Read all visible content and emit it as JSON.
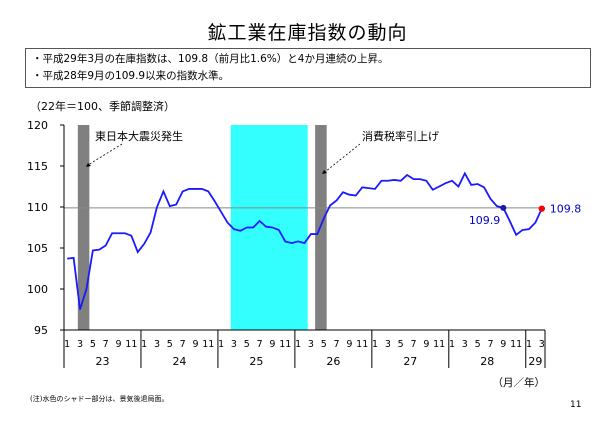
{
  "title": "鉱工業在庫指数の動向",
  "notes": [
    "・平成29年3月の在庫指数は、109.8（前月比1.6%）と4か月連続の上昇。",
    "・平成28年9月の109.9以来の指数水準。"
  ],
  "unit_note": "（22年＝100、季節調整済）",
  "footnote": "(注)水色のシャドー部分は、景気後退局面。",
  "page_number": "11",
  "colors": {
    "line": "#1a1aff",
    "shade_recession": "#33ffff",
    "bar": "#808080",
    "baseline": "#888888",
    "highlight_point": "#ff0000",
    "label": "#0000cc"
  },
  "chart_data": {
    "type": "line",
    "ylim": [
      95,
      120
    ],
    "yticks": [
      95,
      100,
      105,
      110,
      115,
      120
    ],
    "month_ticks": [
      "1",
      "3",
      "5",
      "7",
      "9",
      "11",
      "1",
      "3",
      "5",
      "7",
      "9",
      "11",
      "1",
      "3",
      "5",
      "7",
      "9",
      "11",
      "1",
      "3",
      "5",
      "7",
      "9",
      "11",
      "1",
      "3",
      "5",
      "7",
      "9",
      "11",
      "1",
      "3",
      "5",
      "7",
      "9",
      "11",
      "1",
      "3"
    ],
    "year_labels": [
      "23",
      "24",
      "25",
      "26",
      "27",
      "28",
      "29"
    ],
    "xlabel": "（月／年）",
    "reference_line": 109.9,
    "series": [
      {
        "values": [
          103.7,
          103.8,
          97.5,
          100.0,
          104.7,
          104.8,
          105.3,
          106.8,
          106.8,
          106.8,
          106.5,
          104.5,
          105.5,
          106.9,
          110.0,
          111.9,
          110.1,
          110.3,
          111.9,
          112.2,
          112.2,
          112.2,
          111.9,
          110.7,
          109.4,
          108.1,
          107.3,
          107.1,
          107.5,
          107.5,
          108.3,
          107.6,
          107.5,
          107.2,
          105.8,
          105.6,
          105.8,
          105.6,
          106.7,
          106.7,
          108.6,
          110.2,
          110.8,
          111.8,
          111.5,
          111.4,
          112.4,
          112.3,
          112.2,
          113.2,
          113.2,
          113.3,
          113.2,
          113.9,
          113.4,
          113.4,
          113.2,
          112.1,
          112.5,
          112.9,
          113.2,
          112.5,
          114.1,
          112.7,
          112.8,
          112.4,
          111.0,
          110.1,
          109.9,
          108.3,
          106.6,
          107.2,
          107.3,
          108.1,
          109.8
        ]
      }
    ],
    "shaded_regions": [
      [
        26,
        37
      ]
    ],
    "event_bars": [
      {
        "month_index": 2,
        "label": "東日本大震災発生"
      },
      {
        "month_index": 39,
        "label": "消費税率引上げ"
      }
    ],
    "annotations": [
      {
        "month_index": 68,
        "value": 109.9,
        "text": "109.9"
      },
      {
        "month_index": 74,
        "value": 109.8,
        "text": "109.8"
      }
    ]
  }
}
